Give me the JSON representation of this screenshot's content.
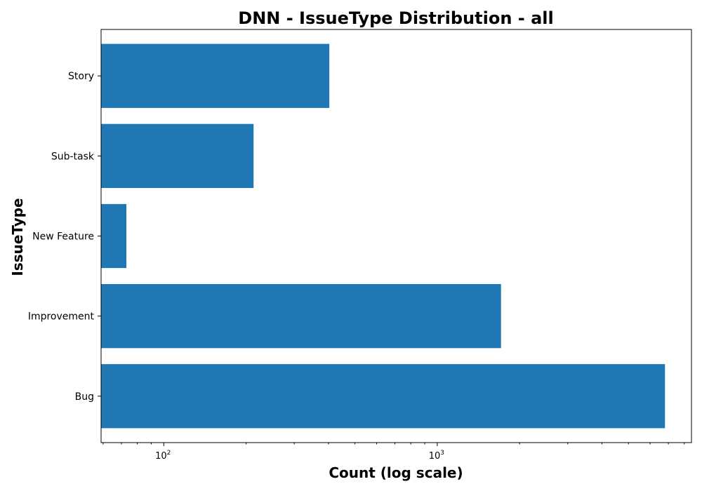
{
  "chart_data": {
    "type": "bar",
    "orientation": "horizontal",
    "title": "DNN - IssueType Distribution - all",
    "xlabel": "Count (log scale)",
    "ylabel": "IssueType",
    "xscale": "log",
    "xlim": [
      59,
      8500
    ],
    "categories": [
      "Bug",
      "Improvement",
      "New Feature",
      "Sub-task",
      "Story"
    ],
    "values": [
      6800,
      1710,
      73,
      213,
      403
    ],
    "x_tick_labels": [
      {
        "value": 100,
        "base": "10",
        "exp": "2"
      },
      {
        "value": 1000,
        "base": "10",
        "exp": "3"
      }
    ],
    "bar_color": "#1f77b4",
    "grid": false,
    "legend": "none"
  }
}
